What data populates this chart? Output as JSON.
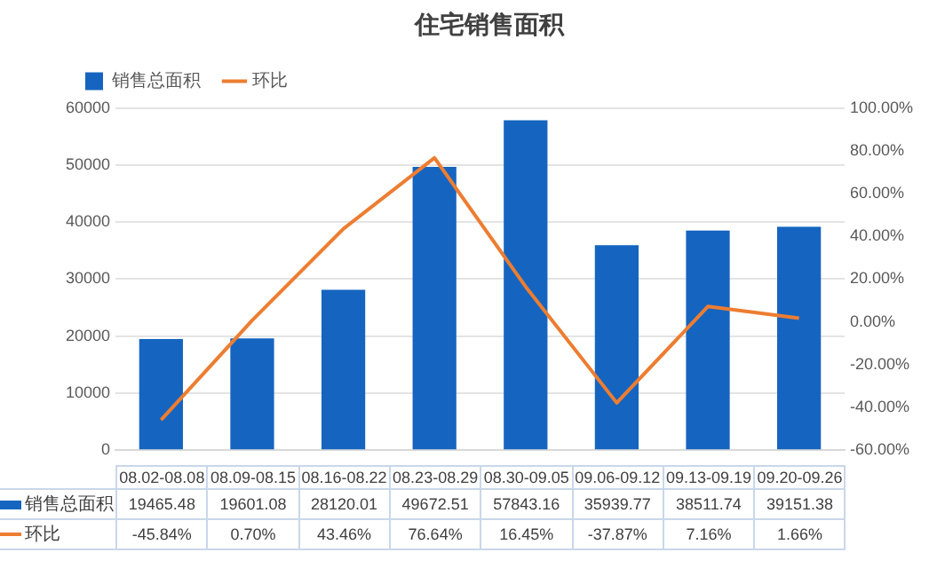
{
  "chart_data": {
    "type": "bar",
    "title": "住宅销售面积",
    "categories": [
      "08.02-08.08",
      "08.09-08.15",
      "08.16-08.22",
      "08.23-08.29",
      "08.30-09.05",
      "09.06-09.12",
      "09.13-09.19",
      "09.20-09.26"
    ],
    "series": [
      {
        "name": "销售总面积",
        "color": "#1565c0",
        "values": [
          19465.48,
          19601.08,
          28120.01,
          49672.51,
          57843.16,
          35939.77,
          38511.74,
          39151.38
        ],
        "value_labels": [
          "19465.48",
          "19601.08",
          "28120.01",
          "49672.51",
          "57843.16",
          "35939.77",
          "38511.74",
          "39151.38"
        ]
      },
      {
        "name": "环比",
        "type": "line",
        "color": "#ed7d31",
        "axis": "y2",
        "values": [
          -45.84,
          0.7,
          43.46,
          76.64,
          16.45,
          -37.87,
          7.16,
          1.66
        ],
        "value_labels": [
          "-45.84%",
          "0.70%",
          "43.46%",
          "76.64%",
          "16.45%",
          "-37.87%",
          "7.16%",
          "1.66%"
        ]
      }
    ],
    "ylim": [
      0,
      60000
    ],
    "yticks": [
      0,
      10000,
      20000,
      30000,
      40000,
      50000,
      60000
    ],
    "y2lim": [
      -60,
      100
    ],
    "y2ticks": [
      {
        "value": -60,
        "label": "-60.00%"
      },
      {
        "value": -40,
        "label": "-40.00%"
      },
      {
        "value": -20,
        "label": "-20.00%"
      },
      {
        "value": 0,
        "label": "0.00%"
      },
      {
        "value": 20,
        "label": "20.00%"
      },
      {
        "value": 40,
        "label": "40.00%"
      },
      {
        "value": 60,
        "label": "60.00%"
      },
      {
        "value": 80,
        "label": "80.00%"
      },
      {
        "value": 100,
        "label": "100.00%"
      }
    ],
    "grid": "y",
    "legend": "top left",
    "marker": "none"
  }
}
